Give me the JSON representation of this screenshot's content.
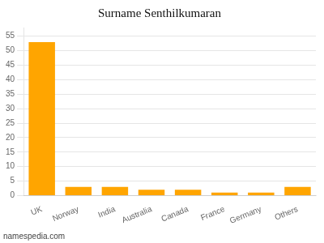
{
  "chart_data": {
    "type": "bar",
    "title": "Surname Senthilkumaran",
    "categories": [
      "UK",
      "Norway",
      "India",
      "Australia",
      "Canada",
      "France",
      "Germany",
      "Others"
    ],
    "values": [
      53,
      3,
      3,
      2,
      2,
      1,
      1,
      3
    ],
    "color": "#FFA500",
    "ylim": [
      0,
      58
    ],
    "yticks": [
      0,
      5,
      10,
      15,
      20,
      25,
      30,
      35,
      40,
      45,
      50,
      55
    ],
    "grid": true,
    "annotations": [
      "namespedia.com"
    ]
  }
}
